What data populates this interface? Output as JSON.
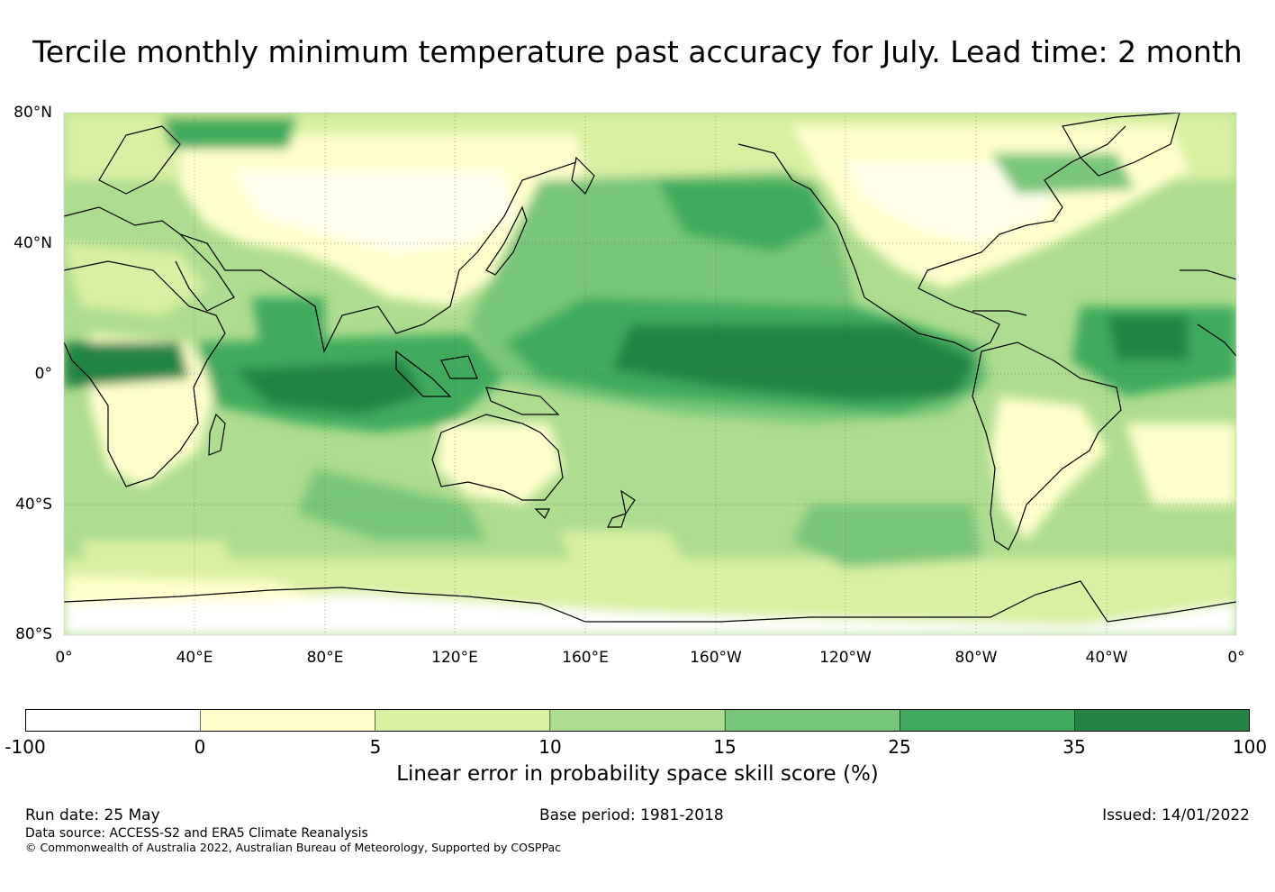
{
  "title": "Tercile monthly minimum temperature past accuracy for July. Lead time: 2 month",
  "map": {
    "projection": "equirectangular, centred on 180°",
    "lat_labels": [
      "80°N",
      "40°N",
      "0°",
      "40°S",
      "80°S"
    ],
    "lon_labels": [
      "0°",
      "40°E",
      "80°E",
      "120°E",
      "160°E",
      "160°W",
      "120°W",
      "80°W",
      "40°W",
      "0°"
    ],
    "gridlines": true
  },
  "colorbar": {
    "ticks": [
      "-100",
      "0",
      "5",
      "10",
      "15",
      "25",
      "35",
      "100"
    ],
    "colors": [
      "#ffffff",
      "#ffffcc",
      "#d9f0a3",
      "#addd8e",
      "#78c679",
      "#41ab5d",
      "#238443"
    ],
    "label": "Linear error in probability space skill score (%)"
  },
  "footer": {
    "run_date": "Run date: 25 May",
    "base_period": "Base period: 1981-2018",
    "issued": "Issued: 14/01/2022",
    "data_source": "Data source: ACCESS-S2 and ERA5 Climate Reanalysis",
    "copyright": "© Commonwealth of Australia 2022, Australian Bureau of Meteorology, Supported by COSPPac"
  }
}
